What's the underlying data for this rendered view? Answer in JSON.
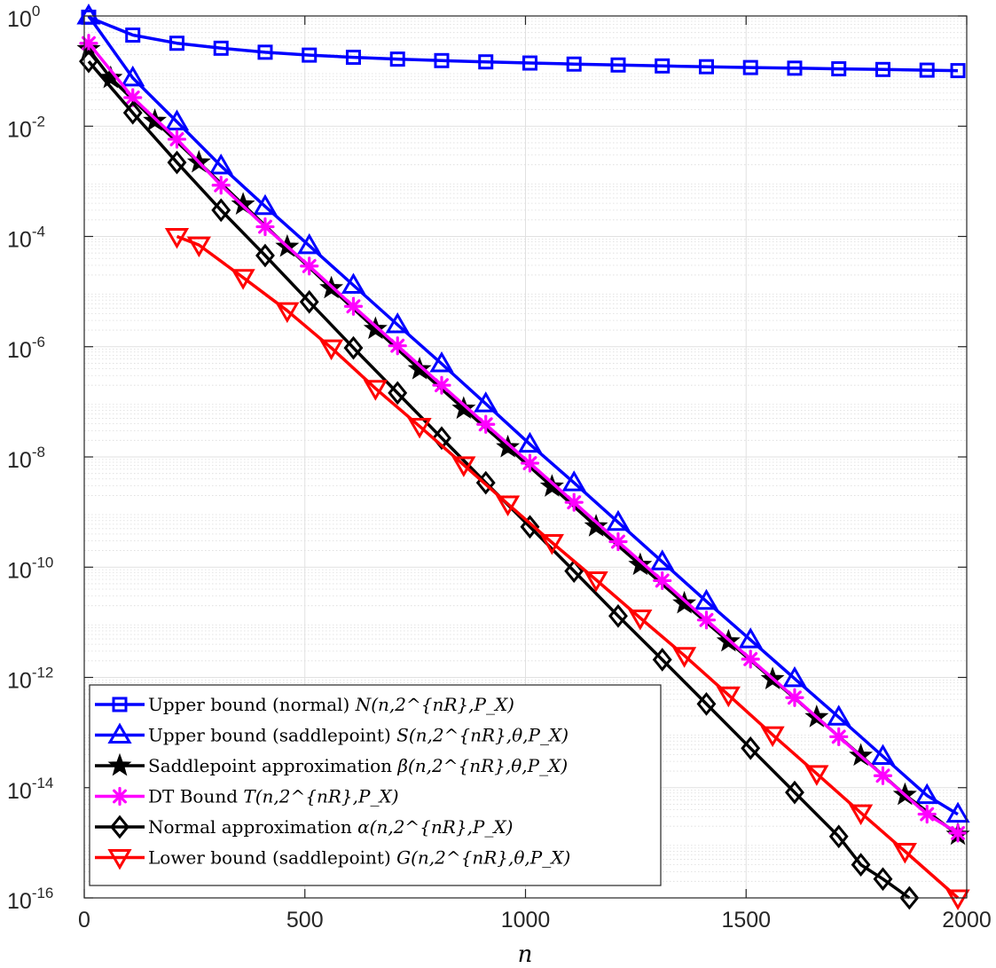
{
  "chart_data": {
    "type": "line",
    "title": "",
    "xlabel": "n",
    "ylabel": "",
    "xlim": [
      0,
      2000
    ],
    "ylim": [
      1e-16,
      1
    ],
    "yscale": "log",
    "grid": true,
    "legend_placement": "bottom-left",
    "x_ticks": [
      {
        "value": 0,
        "label": "0"
      },
      {
        "value": 500,
        "label": "500"
      },
      {
        "value": 1000,
        "label": "1000"
      },
      {
        "value": 1500,
        "label": "1500"
      },
      {
        "value": 2000,
        "label": "2000"
      }
    ],
    "y_ticks": [
      {
        "value": 1,
        "base": "10",
        "exp": "0"
      },
      {
        "value": 0.01,
        "base": "10",
        "exp": "-2"
      },
      {
        "value": 0.0001,
        "base": "10",
        "exp": "-4"
      },
      {
        "value": 1e-06,
        "base": "10",
        "exp": "-6"
      },
      {
        "value": 1e-08,
        "base": "10",
        "exp": "-8"
      },
      {
        "value": 1e-10,
        "base": "10",
        "exp": "-10"
      },
      {
        "value": 1e-12,
        "base": "10",
        "exp": "-12"
      },
      {
        "value": 1e-14,
        "base": "10",
        "exp": "-14"
      },
      {
        "value": 1e-16,
        "base": "10",
        "exp": "-16"
      }
    ],
    "series": [
      {
        "name": "Upper bound (normal) N(n, 2^{nR}, P_X)",
        "color": "#0000ff",
        "marker": "square",
        "marker_every": 1,
        "x": [
          10,
          110,
          210,
          310,
          410,
          510,
          610,
          710,
          810,
          910,
          1010,
          1110,
          1210,
          1310,
          1410,
          1510,
          1610,
          1710,
          1810,
          1910,
          1980
        ],
        "y": [
          0.95,
          0.45,
          0.32,
          0.26,
          0.22,
          0.195,
          0.178,
          0.165,
          0.155,
          0.147,
          0.14,
          0.134,
          0.129,
          0.124,
          0.12,
          0.116,
          0.113,
          0.11,
          0.107,
          0.104,
          0.102
        ]
      },
      {
        "name": "Upper bound (saddlepoint) S(n, 2^{nR}, θ, P_X)",
        "color": "#0000ff",
        "marker": "triangle-up",
        "marker_every": 1,
        "x": [
          10,
          110,
          210,
          310,
          410,
          510,
          610,
          710,
          810,
          910,
          1010,
          1110,
          1210,
          1310,
          1410,
          1510,
          1610,
          1710,
          1810,
          1910,
          1980
        ],
        "y": [
          1.0,
          0.075,
          0.012,
          0.0019,
          0.00035,
          6.8e-05,
          1.3e-05,
          2.5e-06,
          4.9e-07,
          9.2e-08,
          1.7e-08,
          3.4e-09,
          6.5e-10,
          1.25e-10,
          2.4e-11,
          4.8e-12,
          9.5e-13,
          1.9e-13,
          3.7e-14,
          7.2e-15,
          3.3e-15
        ]
      },
      {
        "name": "Saddlepoint approximation β(n, 2^{nR}, θ, P_X)",
        "color": "#000000",
        "marker": "star",
        "marker_every": 1,
        "x": [
          10,
          60,
          160,
          260,
          360,
          460,
          560,
          660,
          760,
          860,
          960,
          1060,
          1160,
          1260,
          1360,
          1460,
          1560,
          1660,
          1760,
          1860,
          1980
        ],
        "y": [
          0.25,
          0.075,
          0.0125,
          0.0022,
          0.00038,
          6.5e-05,
          1.15e-05,
          2.1e-06,
          3.9e-07,
          7.5e-08,
          1.5e-08,
          2.9e-09,
          5.5e-10,
          1.1e-10,
          2.2e-11,
          4.5e-12,
          9.3e-13,
          1.9e-13,
          3.8e-14,
          7.4e-15,
          1.4e-15
        ]
      },
      {
        "name": "DT Bound T(n, 2^{nR}, P_X)",
        "color": "#ff00ff",
        "marker": "asterisk",
        "marker_every": 1,
        "x": [
          10,
          110,
          210,
          310,
          410,
          510,
          610,
          710,
          810,
          910,
          1010,
          1110,
          1210,
          1310,
          1410,
          1510,
          1610,
          1710,
          1810,
          1910,
          1980
        ],
        "y": [
          0.32,
          0.033,
          0.0058,
          0.00085,
          0.00015,
          2.9e-05,
          5.4e-06,
          1.04e-06,
          2e-07,
          3.9e-08,
          7.7e-09,
          1.5e-09,
          2.9e-10,
          5.7e-11,
          1.1e-11,
          2.15e-12,
          4.3e-13,
          8.4e-14,
          1.65e-14,
          3.3e-15,
          1.5e-15
        ]
      },
      {
        "name": "Normal approximation α(n, 2^{nR}, P_X)",
        "color": "#000000",
        "marker": "diamond",
        "marker_every": 1,
        "x": [
          10,
          110,
          210,
          310,
          410,
          510,
          610,
          710,
          810,
          910,
          1010,
          1110,
          1210,
          1310,
          1410,
          1510,
          1610,
          1710,
          1760,
          1810,
          1870
        ],
        "y": [
          0.15,
          0.0175,
          0.0022,
          0.0003,
          4.5e-05,
          6.5e-06,
          9.5e-07,
          1.45e-07,
          2.2e-08,
          3.4e-09,
          5.4e-10,
          8.5e-11,
          1.3e-11,
          2.1e-12,
          3.3e-13,
          5.2e-14,
          8.2e-15,
          1.3e-15,
          4e-16,
          2.2e-16,
          1e-16
        ]
      },
      {
        "name": "Lower bound (saddlepoint) G(n, 2^{nR}, θ, P_X)",
        "color": "#ff0000",
        "marker": "triangle-down",
        "marker_every": 1,
        "x": [
          210,
          260,
          360,
          460,
          560,
          660,
          760,
          860,
          960,
          1060,
          1160,
          1260,
          1360,
          1460,
          1560,
          1660,
          1760,
          1860,
          1980
        ],
        "y": [
          0.0001,
          7e-05,
          1.8e-05,
          4.5e-06,
          9.5e-07,
          1.75e-07,
          3.6e-08,
          7.2e-09,
          1.4e-09,
          2.8e-10,
          5.9e-11,
          1.2e-11,
          2.5e-12,
          4.8e-13,
          9.1e-14,
          1.8e-14,
          3.5e-15,
          7e-16,
          1e-16
        ]
      }
    ]
  },
  "legend": {
    "entries": [
      {
        "label": "Upper bound (normal)",
        "math": "N(n,2^{nR},P_X)"
      },
      {
        "label": "Upper bound (saddlepoint)",
        "math": "S(n,2^{nR},θ,P_X)"
      },
      {
        "label": "Saddlepoint approximation",
        "math": "β(n,2^{nR},θ,P_X)"
      },
      {
        "label": "DT Bound",
        "math": "T(n,2^{nR},P_X)"
      },
      {
        "label": "Normal approximation",
        "math": "α(n,2^{nR},P_X)"
      },
      {
        "label": "Lower bound (saddlepoint)",
        "math": "G(n,2^{nR},θ,P_X)"
      }
    ]
  }
}
